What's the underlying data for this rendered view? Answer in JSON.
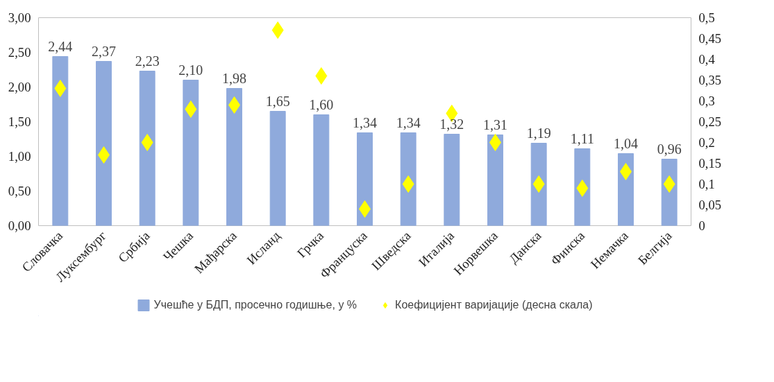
{
  "chart_data": {
    "type": "bar",
    "categories": [
      "Словачка",
      "Луксембург",
      "Србија",
      "Чешка",
      "Мађарска",
      "Исланд",
      "Грчка",
      "Француска",
      "Шведска",
      "Италија",
      "Норвешка",
      "Данска",
      "Финска",
      "Немачка",
      "Белгија"
    ],
    "series": [
      {
        "name": "Учешће у БДП, просечно годишње, у %",
        "color": "#8faadc",
        "values": [
          2.44,
          2.37,
          2.23,
          2.1,
          1.98,
          1.65,
          1.6,
          1.34,
          1.34,
          1.32,
          1.31,
          1.19,
          1.11,
          1.04,
          0.96
        ],
        "value_labels": [
          "2,44",
          "2,37",
          "2,23",
          "2,10",
          "1,98",
          "1,65",
          "1,60",
          "1,34",
          "1,34",
          "1,32",
          "1,31",
          "1,19",
          "1,11",
          "1,04",
          "0,96"
        ]
      },
      {
        "name": "Коефицијент варијације (десна скала)",
        "type": "scatter",
        "axis": "y2",
        "marker": "diamond",
        "color": "#ffff00",
        "values": [
          0.33,
          0.17,
          0.2,
          0.28,
          0.29,
          0.47,
          0.36,
          0.04,
          0.1,
          0.27,
          0.2,
          0.1,
          0.09,
          0.13,
          0.1
        ]
      }
    ],
    "ylim": [
      0,
      3
    ],
    "yticks": [
      {
        "value": 0,
        "label": "0,00"
      },
      {
        "value": 0.5,
        "label": "0,50"
      },
      {
        "value": 1,
        "label": "1,00"
      },
      {
        "value": 1.5,
        "label": "1,50"
      },
      {
        "value": 2,
        "label": "2,00"
      },
      {
        "value": 2.5,
        "label": "2,50"
      },
      {
        "value": 3,
        "label": "3,00"
      }
    ],
    "y2lim": [
      0,
      0.5
    ],
    "y2ticks": [
      0,
      {
        "value": 0.05,
        "label": "0,05"
      },
      {
        "value": 0.1,
        "label": "0,1"
      },
      {
        "value": 0.15,
        "label": "0,15"
      },
      {
        "value": 0.2,
        "label": "0,2"
      },
      {
        "value": 0.25,
        "label": "0,25"
      },
      {
        "value": 0.3,
        "label": "0,3"
      },
      {
        "value": 0.35,
        "label": "0,35"
      },
      {
        "value": 0.4,
        "label": "0,4"
      },
      {
        "value": 0.45,
        "label": "0,45"
      },
      {
        "value": 0.5,
        "label": "0,5"
      }
    ],
    "grid": false,
    "legend": "bottom"
  }
}
